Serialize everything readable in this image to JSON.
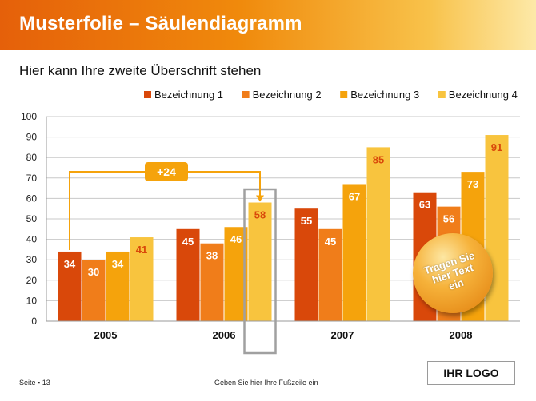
{
  "slide": {
    "title": "Musterfolie – Säulendiagramm",
    "subtitle": "Hier kann Ihre zweite Überschrift stehen",
    "page_label": "Seite ▪ 13",
    "footer_text": "Geben Sie hier Ihre Fußzeile ein",
    "logo_text": "IHR LOGO",
    "bubble_text": "Tragen Sie\nhier Text\nein"
  },
  "colors": {
    "series": [
      "#d9480a",
      "#f07d1a",
      "#f5a30c",
      "#f8c43e"
    ],
    "highlight_label": "#d9480a",
    "annotation": "#f5a30c",
    "box": "#a0a0a0"
  },
  "chart_data": {
    "type": "bar",
    "categories": [
      "2005",
      "2006",
      "2007",
      "2008"
    ],
    "series": [
      {
        "name": "Bezeichnung 1",
        "values": [
          34,
          45,
          55,
          63
        ]
      },
      {
        "name": "Bezeichnung 2",
        "values": [
          30,
          38,
          45,
          56
        ]
      },
      {
        "name": "Bezeichnung 3",
        "values": [
          34,
          46,
          67,
          73
        ]
      },
      {
        "name": "Bezeichnung 4",
        "values": [
          41,
          58,
          85,
          91
        ]
      }
    ],
    "ylim": [
      0,
      100
    ],
    "yticks": [
      0,
      10,
      20,
      30,
      40,
      50,
      60,
      70,
      80,
      90,
      100
    ],
    "grid": true,
    "legend": "top-right",
    "annotation": {
      "text": "+24",
      "from": "2005 Bezeichnung 1",
      "to": "2006 Bezeichnung 4"
    }
  }
}
